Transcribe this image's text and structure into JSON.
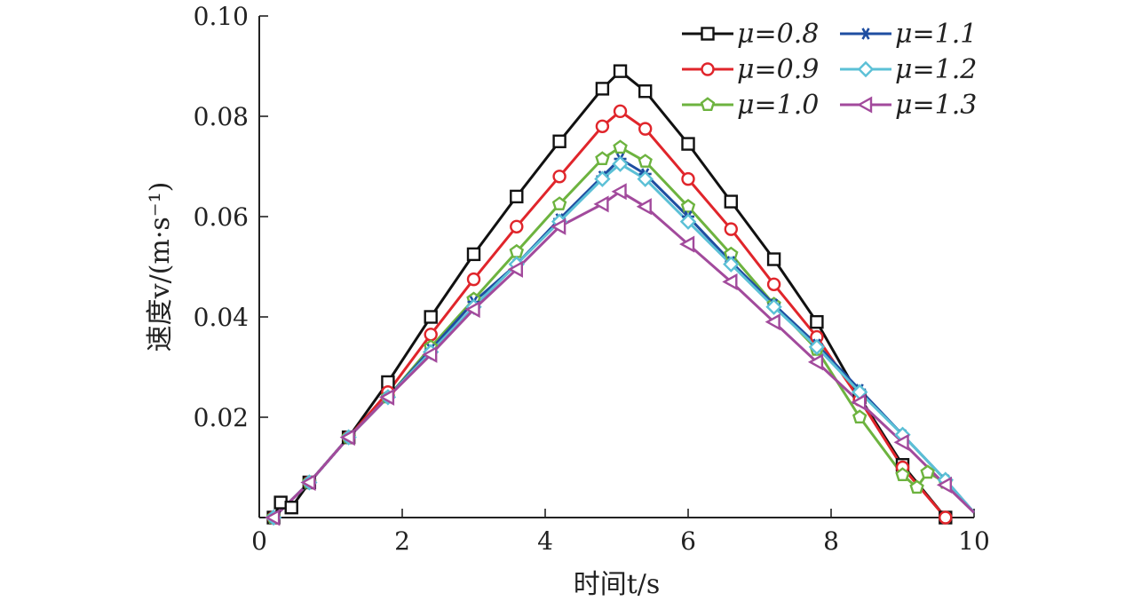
{
  "chart_data": {
    "type": "line",
    "xlabel": "时间t/s",
    "ylabel": "速度v/(m·s⁻¹)",
    "xlim": [
      0,
      10
    ],
    "ylim": [
      0,
      0.1
    ],
    "xticks": [
      "0",
      "2",
      "4",
      "6",
      "8",
      "10"
    ],
    "yticks": [
      "0.02",
      "0.04",
      "0.06",
      "0.08",
      "0.10"
    ],
    "grid": false,
    "legend_position": "top-right",
    "series": [
      {
        "name": "μ=0.8",
        "color": "#111111",
        "marker": "square",
        "x": [
          0.2,
          0.3,
          0.45,
          0.7,
          1.25,
          1.8,
          2.4,
          3.0,
          3.6,
          4.2,
          4.8,
          5.05,
          5.4,
          6.0,
          6.6,
          7.2,
          7.8,
          8.4,
          9.0,
          9.6
        ],
        "y": [
          0.0,
          0.003,
          0.002,
          0.007,
          0.016,
          0.027,
          0.04,
          0.0525,
          0.064,
          0.075,
          0.0855,
          0.089,
          0.085,
          0.0745,
          0.063,
          0.0515,
          0.039,
          0.024,
          0.0105,
          0.0
        ]
      },
      {
        "name": "μ=0.9",
        "color": "#e0252b",
        "marker": "circle",
        "x": [
          0.2,
          0.7,
          1.25,
          1.8,
          2.4,
          3.0,
          3.6,
          4.2,
          4.8,
          5.05,
          5.4,
          6.0,
          6.6,
          7.2,
          7.8,
          8.4,
          9.0,
          9.6
        ],
        "y": [
          0.0,
          0.007,
          0.016,
          0.025,
          0.0365,
          0.0475,
          0.058,
          0.068,
          0.078,
          0.081,
          0.0775,
          0.0675,
          0.0575,
          0.0465,
          0.036,
          0.0235,
          0.01,
          0.0
        ]
      },
      {
        "name": "μ=1.0",
        "color": "#6db33f",
        "marker": "pentagon",
        "x": [
          0.2,
          0.7,
          1.25,
          1.8,
          2.4,
          3.0,
          3.6,
          4.2,
          4.8,
          5.05,
          5.4,
          6.0,
          6.6,
          7.2,
          7.8,
          8.4,
          9.0,
          9.2,
          9.35,
          9.6
        ],
        "y": [
          0.0,
          0.007,
          0.016,
          0.024,
          0.034,
          0.0435,
          0.053,
          0.0625,
          0.0715,
          0.0738,
          0.071,
          0.062,
          0.0525,
          0.0425,
          0.0335,
          0.02,
          0.0085,
          0.006,
          0.009,
          0.007
        ]
      },
      {
        "name": "μ=1.1",
        "color": "#1f4ea1",
        "marker": "star",
        "x": [
          0.2,
          0.7,
          1.25,
          1.8,
          2.4,
          3.0,
          3.6,
          4.2,
          4.8,
          5.05,
          5.4,
          6.0,
          6.6,
          7.2,
          7.8,
          8.4,
          9.0,
          9.6,
          10.0
        ],
        "y": [
          0.0,
          0.007,
          0.016,
          0.024,
          0.0335,
          0.043,
          0.0505,
          0.0595,
          0.068,
          0.0715,
          0.0685,
          0.06,
          0.051,
          0.0425,
          0.0345,
          0.0255,
          0.0165,
          0.0075,
          0.001
        ]
      },
      {
        "name": "μ=1.2",
        "color": "#5bc0d6",
        "marker": "diamond",
        "x": [
          0.2,
          0.7,
          1.25,
          1.8,
          2.4,
          3.0,
          3.6,
          4.2,
          4.8,
          5.05,
          5.4,
          6.0,
          6.6,
          7.2,
          7.8,
          8.4,
          9.0,
          9.6,
          10.0
        ],
        "y": [
          0.0,
          0.007,
          0.016,
          0.024,
          0.033,
          0.042,
          0.0505,
          0.059,
          0.0675,
          0.0705,
          0.0675,
          0.059,
          0.0505,
          0.042,
          0.034,
          0.025,
          0.0165,
          0.0075,
          0.001
        ]
      },
      {
        "name": "μ=1.3",
        "color": "#a24a9c",
        "marker": "triangle-left",
        "x": [
          0.2,
          0.7,
          1.25,
          1.8,
          2.4,
          3.0,
          3.6,
          4.2,
          4.8,
          5.05,
          5.4,
          6.0,
          6.6,
          7.2,
          7.8,
          8.4,
          9.0,
          9.6,
          10.0
        ],
        "y": [
          0.0,
          0.007,
          0.016,
          0.024,
          0.0325,
          0.0415,
          0.0495,
          0.058,
          0.0625,
          0.065,
          0.062,
          0.0545,
          0.047,
          0.039,
          0.031,
          0.023,
          0.015,
          0.0065,
          0.001
        ]
      }
    ]
  }
}
